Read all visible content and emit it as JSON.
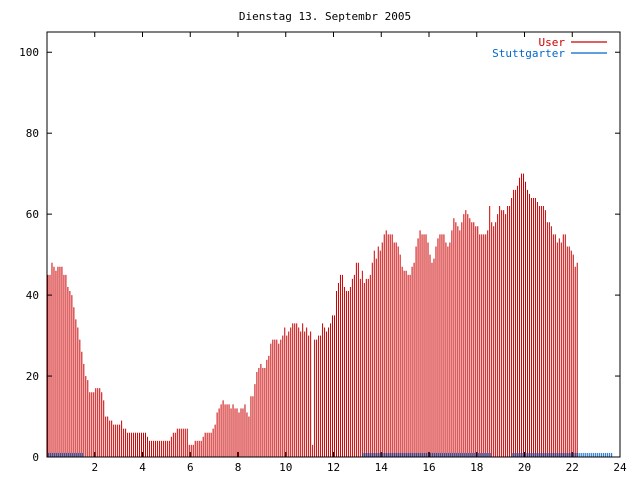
{
  "chart_data": {
    "type": "bar",
    "title": "Dienstag 13. Septembr 2005",
    "xlabel": "",
    "ylabel": "",
    "xlim": [
      0,
      24
    ],
    "ylim": [
      0,
      105
    ],
    "xticks": [
      2,
      4,
      6,
      8,
      10,
      12,
      14,
      16,
      18,
      20,
      22,
      24
    ],
    "yticks": [
      0,
      20,
      40,
      60,
      80,
      100
    ],
    "grid": false,
    "legend_position": "top-right",
    "interval_minutes": 5,
    "series": [
      {
        "name": "User",
        "color": "#cc0000",
        "values": [
          45,
          45,
          48,
          47,
          46,
          47,
          47,
          47,
          45,
          45,
          42,
          41,
          40,
          37,
          34,
          32,
          29,
          26,
          23,
          20,
          19,
          16,
          16,
          16,
          17,
          17,
          17,
          16,
          14,
          10,
          10,
          9,
          9,
          8,
          8,
          8,
          8,
          9,
          7,
          7,
          6,
          6,
          6,
          6,
          6,
          6,
          6,
          6,
          6,
          6,
          5,
          4,
          4,
          4,
          4,
          4,
          4,
          4,
          4,
          4,
          4,
          4,
          5,
          6,
          6,
          7,
          7,
          7,
          7,
          7,
          7,
          3,
          3,
          3,
          4,
          4,
          4,
          4,
          5,
          6,
          6,
          6,
          6,
          7,
          8,
          11,
          12,
          13,
          14,
          13,
          13,
          13,
          12,
          13,
          12,
          12,
          11,
          12,
          12,
          13,
          11,
          10,
          15,
          15,
          18,
          21,
          22,
          23,
          22,
          22,
          24,
          25,
          28,
          29,
          29,
          29,
          28,
          29,
          30,
          32,
          30,
          31,
          32,
          33,
          33,
          33,
          32,
          31,
          33,
          31,
          32,
          30,
          31,
          3,
          29,
          29,
          30,
          30,
          33,
          32,
          31,
          32,
          33,
          35,
          35,
          41,
          43,
          45,
          45,
          42,
          41,
          41,
          42,
          44,
          45,
          48,
          48,
          44,
          46,
          43,
          44,
          44,
          45,
          48,
          51,
          49,
          52,
          51,
          53,
          55,
          56,
          55,
          55,
          55,
          53,
          53,
          52,
          50,
          47,
          46,
          46,
          45,
          45,
          47,
          48,
          52,
          54,
          56,
          55,
          55,
          55,
          53,
          50,
          48,
          49,
          52,
          54,
          55,
          55,
          55,
          53,
          52,
          53,
          56,
          59,
          58,
          57,
          56,
          58,
          60,
          61,
          60,
          59,
          58,
          58,
          57,
          57,
          55,
          55,
          55,
          55,
          56,
          62,
          58,
          57,
          58,
          60,
          62,
          61,
          61,
          60,
          62,
          62,
          64,
          66,
          66,
          67,
          69,
          70,
          70,
          68,
          66,
          65,
          64,
          64,
          64,
          63,
          62,
          62,
          62,
          61,
          58,
          58,
          57,
          55,
          55,
          53,
          54,
          53,
          55,
          55,
          52,
          52,
          51,
          50,
          47,
          48
        ]
      },
      {
        "name": "Stuttgarter",
        "color": "#0066cc",
        "values": [
          1,
          1,
          1,
          1,
          1,
          1,
          1,
          1,
          1,
          1,
          1,
          1,
          1,
          1,
          1,
          1,
          1,
          1,
          0,
          0,
          0,
          0,
          0,
          0,
          0,
          0,
          0,
          0,
          0,
          0,
          0,
          0,
          0,
          0,
          0,
          0,
          0,
          0,
          0,
          0,
          0,
          0,
          0,
          0,
          0,
          0,
          0,
          0,
          0,
          0,
          0,
          0,
          0,
          0,
          0,
          0,
          0,
          0,
          0,
          0,
          0,
          0,
          0,
          0,
          0,
          0,
          0,
          0,
          0,
          0,
          0,
          0,
          0,
          0,
          0,
          0,
          0,
          0,
          0,
          0,
          0,
          0,
          0,
          0,
          0,
          0,
          0,
          0,
          0,
          0,
          0,
          0,
          0,
          0,
          0,
          0,
          0,
          0,
          0,
          0,
          0,
          0,
          0,
          0,
          0,
          0,
          0,
          0,
          0,
          0,
          0,
          0,
          0,
          0,
          0,
          0,
          0,
          0,
          0,
          0,
          0,
          0,
          0,
          0,
          0,
          0,
          0,
          0,
          0,
          0,
          0,
          0,
          0,
          0,
          0,
          0,
          0,
          0,
          0,
          0,
          0,
          0,
          0,
          0,
          0,
          0,
          0,
          0,
          0,
          0,
          0,
          0,
          0,
          0,
          0,
          0,
          0,
          0,
          1,
          1,
          1,
          1,
          1,
          1,
          1,
          1,
          1,
          1,
          1,
          1,
          1,
          1,
          1,
          1,
          1,
          1,
          1,
          1,
          1,
          1,
          1,
          1,
          1,
          1,
          1,
          1,
          1,
          1,
          1,
          1,
          1,
          1,
          1,
          1,
          1,
          1,
          1,
          1,
          1,
          1,
          1,
          1,
          1,
          1,
          1,
          1,
          1,
          1,
          1,
          1,
          1,
          1,
          1,
          1,
          1,
          1,
          1,
          1,
          1,
          1,
          1,
          1,
          1,
          0,
          0,
          0,
          0,
          0,
          0,
          0,
          0,
          0,
          0,
          1,
          1,
          1,
          1,
          1,
          1,
          1,
          1,
          1,
          1,
          1,
          1,
          1,
          1,
          1,
          1,
          1,
          1,
          1,
          1,
          1,
          1,
          1,
          1,
          1,
          1,
          1,
          1,
          1,
          1,
          1,
          1,
          1,
          1,
          1,
          1,
          1,
          1,
          1,
          1,
          1,
          1,
          1,
          1,
          1,
          1,
          1,
          1,
          1,
          1,
          1
        ]
      }
    ]
  }
}
